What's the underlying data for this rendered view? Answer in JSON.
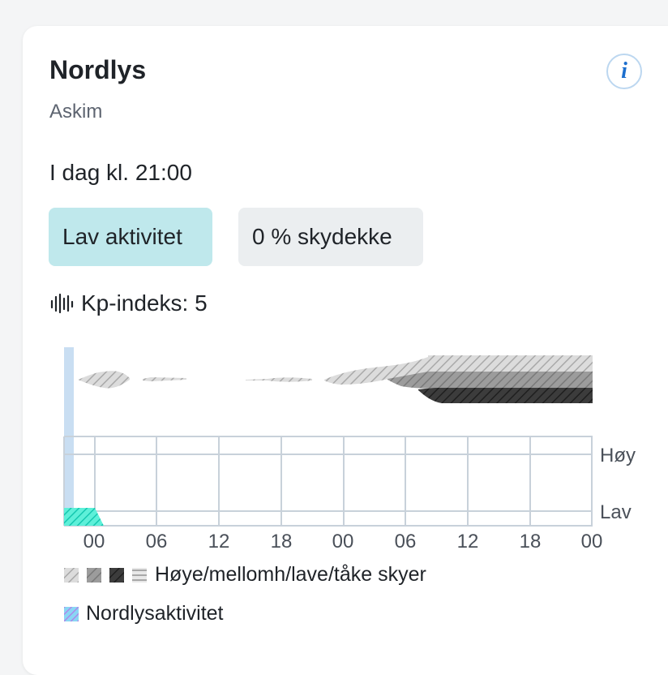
{
  "card": {
    "title": "Nordlys",
    "location": "Askim",
    "time_label": "I dag kl. 21:00",
    "info_icon": "info-icon",
    "info_glyph": "i"
  },
  "badges": {
    "activity": "Lav aktivitet",
    "cloud_cover": "0 % skydekke"
  },
  "kp": {
    "label": "Kp-indeks: 5",
    "icon": "signal-bars-icon"
  },
  "chart_data": {
    "type": "area",
    "x_tick_labels": [
      "00",
      "06",
      "12",
      "18",
      "00",
      "06",
      "12",
      "18",
      "00"
    ],
    "y_levels": [
      "Høy",
      "Lav"
    ],
    "current_time_marker": true,
    "grid": true,
    "series": [
      {
        "name": "Nordlysaktivitet",
        "color": "#2de2c8",
        "shown_as": "hatched band along the Lav baseline, from the current-time marker to just after the first 00"
      }
    ],
    "clouds": {
      "layers": [
        "high",
        "mid",
        "low",
        "fog"
      ],
      "colors": [
        "#c8c8c8",
        "#8f8f8f",
        "#3a3a3a",
        "#b8b8b8"
      ]
    }
  },
  "legend": {
    "clouds_label": "Høye/mellomh/lave/tåke skyer",
    "aurora_label": "Nordlysaktivitet"
  },
  "colors": {
    "activity_badge": "#bfe8ec",
    "cloud_badge": "#ebeef0",
    "now_marker": "#c9def2",
    "grid": "#c8d1da",
    "info_icon": "#1d6fce"
  }
}
